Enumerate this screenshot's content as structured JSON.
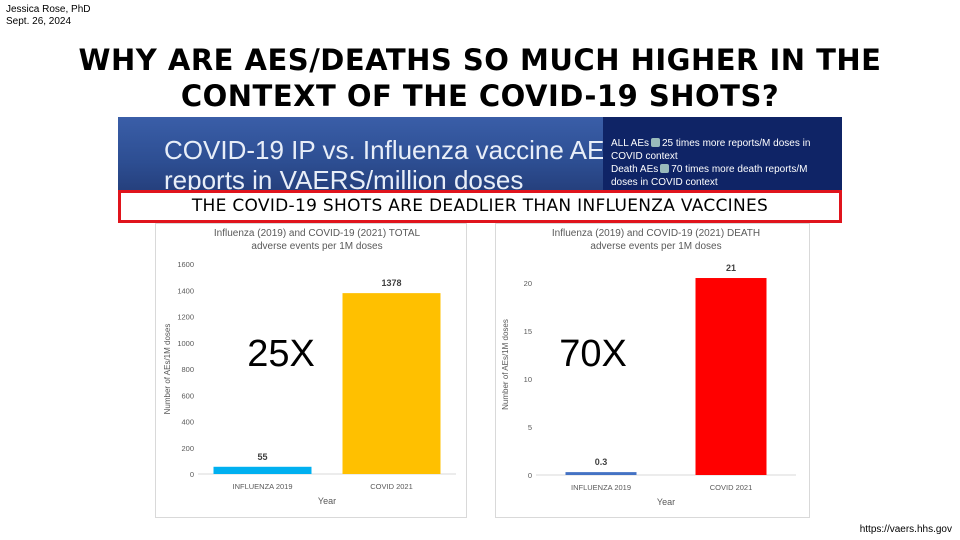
{
  "author": {
    "name": "Jessica Rose, PhD",
    "date": "Sept. 26, 2024"
  },
  "title": {
    "line1": "WHY ARE AES/DEATHS SO MUCH HIGHER IN THE",
    "line2": "CONTEXT OF THE COVID-19 SHOTS?"
  },
  "banner": {
    "title_line1": "COVID-19 IP vs. Influenza vaccine AE",
    "title_line2": "reports in VAERS/million doses",
    "note1_a": "ALL AEs",
    "note1_b": "25 times more reports/M doses in COVID context",
    "note2_a": "Death AEs",
    "note2_b": "70 times more death reports/M doses in COVID context",
    "arrow_icon": "right-arrow-icon"
  },
  "callout": "THE COVID-19 SHOTS ARE DEADLIER THAN INFLUENZA VACCINES",
  "source": "https://vaers.hhs.gov",
  "chart_data": [
    {
      "type": "bar",
      "title_line1": "Influenza (2019) and COVID-19 (2021) TOTAL",
      "title_line2": "adverse events per 1M doses",
      "categories": [
        "INFLUENZA 2019",
        "COVID 2021"
      ],
      "values": [
        55,
        1378
      ],
      "data_labels": [
        "55",
        "1378"
      ],
      "colors": [
        "#00b0f0",
        "#ffc000"
      ],
      "xlabel": "Year",
      "ylabel": "Number of AEs/1M doses",
      "ylim": [
        0,
        1600
      ],
      "yticks": [
        0,
        200,
        400,
        600,
        800,
        1000,
        1200,
        1400,
        1600
      ],
      "annotation": "25X",
      "grid": false
    },
    {
      "type": "bar",
      "title_line1": "Influenza (2019) and COVID-19 (2021) DEATH",
      "title_line2": "adverse events per 1M doses",
      "categories": [
        "INFLUENZA 2019",
        "COVID 2021"
      ],
      "values": [
        0.3,
        20.5
      ],
      "data_labels": [
        "0.3",
        "21"
      ],
      "colors": [
        "#4472c4",
        "#ff0000"
      ],
      "xlabel": "Year",
      "ylabel": "Number of AEs/1M doses",
      "ylim": [
        0,
        23
      ],
      "yticks": [
        0,
        5,
        10,
        15,
        20
      ],
      "annotation": "70X",
      "grid": false
    }
  ]
}
